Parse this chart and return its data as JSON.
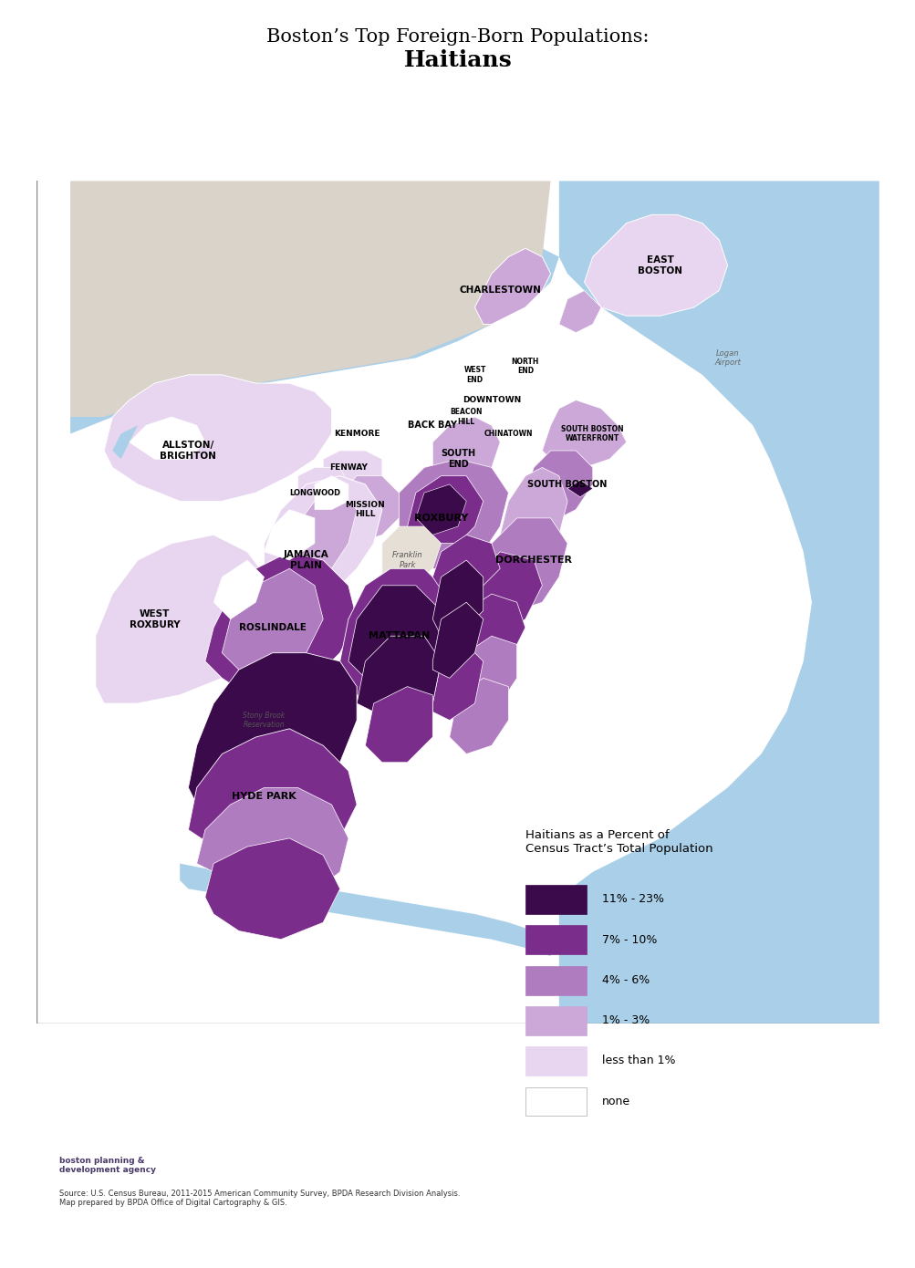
{
  "title_line1": "Boston’s Top Foreign-Born Populations:",
  "title_line2": "Haitians",
  "legend_title": "Haitians as a Percent of\nCensus Tract’s Total Population",
  "legend_entries": [
    {
      "label": "11% - 23%",
      "color": "#3b0a4a"
    },
    {
      "label": "7% - 10%",
      "color": "#7b2d8b"
    },
    {
      "label": "4% - 6%",
      "color": "#b07cc0"
    },
    {
      "label": "1% - 3%",
      "color": "#cba8d8"
    },
    {
      "label": "less than 1%",
      "color": "#e8d5f0"
    },
    {
      "label": "none",
      "color": "#ffffff"
    }
  ],
  "background_color": "#d9d3c9",
  "water_color": "#aacfe8",
  "legend_bg": "#f0ece6",
  "source_text": "Source: U.S. Census Bureau, 2011-2015 American Community Survey, BPDA Research Division Analysis.\nMap prepared by BPDA Office of Digital Cartography & GIS.",
  "agency_text": "boston planning &\ndevelopment agency",
  "figsize": [
    10.04,
    13.9
  ],
  "dpi": 100
}
